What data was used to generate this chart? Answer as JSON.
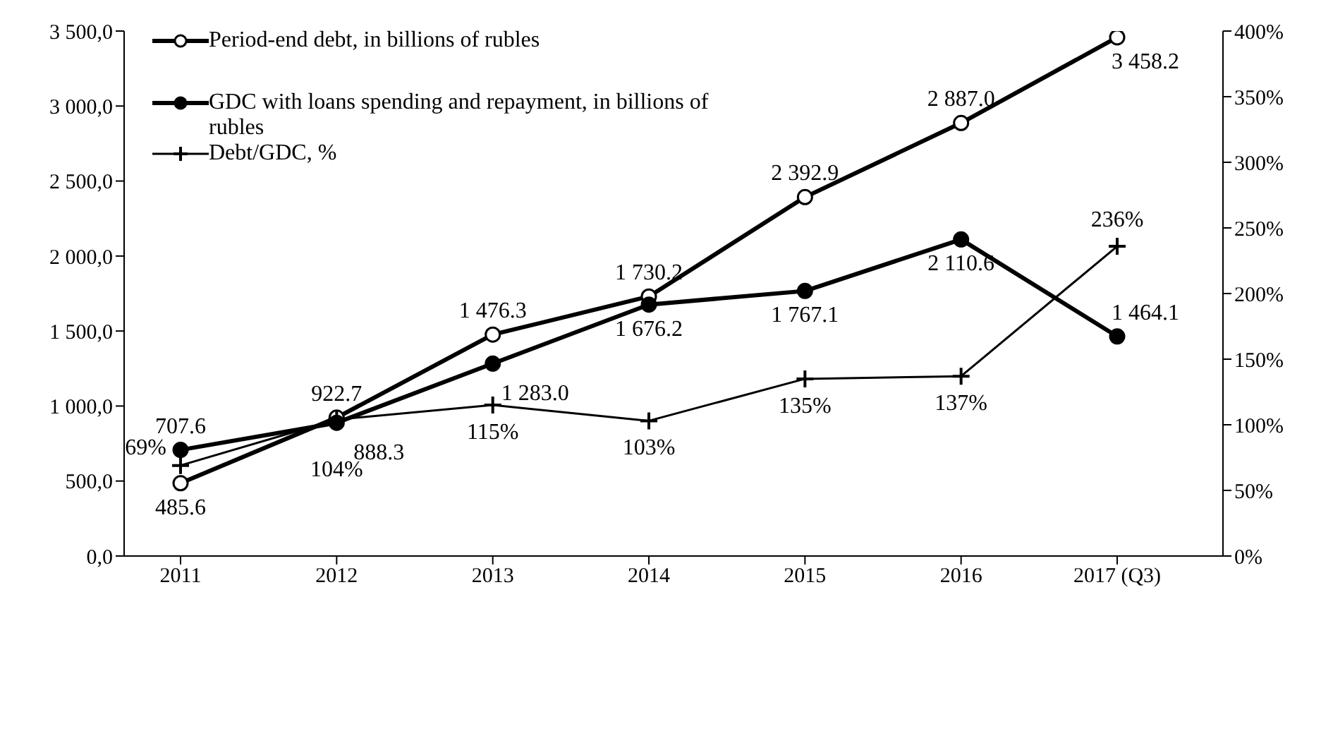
{
  "chart_data": {
    "type": "line",
    "categories": [
      "2011",
      "2012",
      "2013",
      "2014",
      "2015",
      "2016",
      "2017 (Q3)"
    ],
    "series": [
      {
        "name": "Period-end debt, in billions of rubles",
        "color": "#000000",
        "marker": "circle",
        "values": [
          485.6,
          922.7,
          1476.3,
          1730.2,
          2392.9,
          2887.0,
          3458.2
        ],
        "value_labels": [
          "485.6",
          "922.7",
          "1 476.3",
          "1 730.2",
          "2 392.9",
          "2 887.0",
          "3 458.2"
        ]
      },
      {
        "name": "GDC with loans spending and repayment, in billions of rubles",
        "color": "#000000",
        "marker": "circle",
        "values": [
          707.6,
          888.3,
          1283.0,
          1676.2,
          1767.1,
          2110.6,
          1464.1
        ],
        "value_labels": [
          "707.6",
          "888.3",
          "1 283.0",
          "1 676.2",
          "1 767.1",
          "2 110.6",
          "1 464.1"
        ]
      },
      {
        "name": "Debt/GDC, %",
        "color": "#000000",
        "marker": "cross",
        "axis": "y2",
        "values": [
          69,
          104,
          115,
          103,
          135,
          137,
          236
        ],
        "value_labels": [
          "69%",
          "104%",
          "115%",
          "103%",
          "135%",
          "137%",
          "236%"
        ]
      }
    ],
    "ylim": [
      0,
      3500
    ],
    "yticks": [
      {
        "value": 0,
        "label": "0,0"
      },
      {
        "value": 500,
        "label": "500,0"
      },
      {
        "value": 1000,
        "label": "1 000,0"
      },
      {
        "value": 1500,
        "label": "1 500,0"
      },
      {
        "value": 2000,
        "label": "2 000,0"
      },
      {
        "value": 2500,
        "label": "2 500,0"
      },
      {
        "value": 3000,
        "label": "3 000,0"
      },
      {
        "value": 3500,
        "label": "3 500,0"
      }
    ],
    "y2lim": [
      0,
      400
    ],
    "y2ticks": [
      {
        "value": 0,
        "label": "0%"
      },
      {
        "value": 50,
        "label": "50%"
      },
      {
        "value": 100,
        "label": "100%"
      },
      {
        "value": 150,
        "label": "150%"
      },
      {
        "value": 200,
        "label": "200%"
      },
      {
        "value": 250,
        "label": "250%"
      },
      {
        "value": 300,
        "label": "300%"
      },
      {
        "value": 350,
        "label": "350%"
      },
      {
        "value": 400,
        "label": "400%"
      }
    ],
    "grid": false,
    "legend": "top left"
  }
}
